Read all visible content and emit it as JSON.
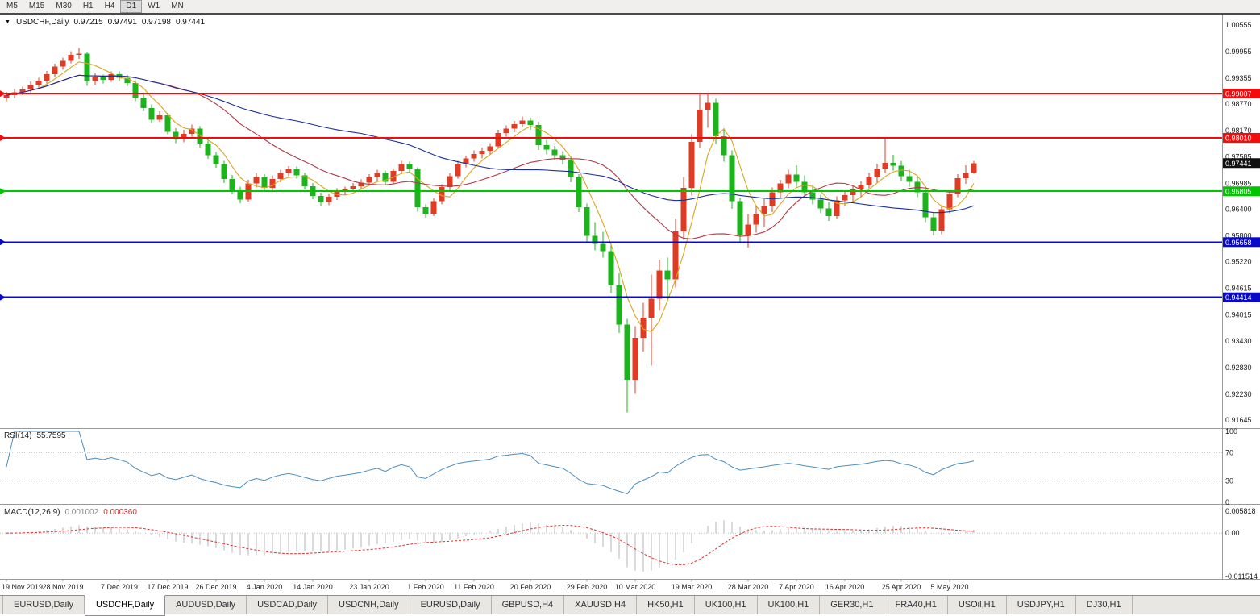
{
  "toolbar": {
    "timeframes": [
      "M5",
      "M15",
      "M30",
      "H1",
      "H4",
      "D1",
      "W1",
      "MN"
    ],
    "active": "D1"
  },
  "chart": {
    "title": "USDCHF,Daily",
    "ohlc": {
      "open": "0.97215",
      "high": "0.97491",
      "low": "0.97198",
      "close": "0.97441"
    }
  },
  "rsi": {
    "label": "RSI(14)",
    "value": "55.7595",
    "color": "#4a8ec2",
    "levels": [
      "100",
      "70",
      "30",
      "0"
    ]
  },
  "macd": {
    "label": "MACD(12,26,9)",
    "value_macd": "0.001002",
    "value_signal": "0.000360",
    "axis_labels": [
      "0.005818",
      "0.00",
      "-0.011514"
    ],
    "histogram_color": "#b4b4b4",
    "signal_color": "#e03030"
  },
  "tabbar": {
    "active_index": 1,
    "tabs": [
      "EURUSD,Daily",
      "USDCHF,Daily",
      "AUDUSD,Daily",
      "USDCAD,Daily",
      "USDCNH,Daily",
      "EURUSD,Daily",
      "GBPUSD,H4",
      "XAUUSD,H4",
      "HK50,H1",
      "UK100,H1",
      "UK100,H1",
      "GER30,H1",
      "FRA40,H1",
      "USOil,H1",
      "USDJPY,H1",
      "DJ30,H1"
    ]
  },
  "chart_data": {
    "type": "candlestick",
    "symbol": "USDCHF",
    "timeframe": "Daily",
    "current_price": 0.97441,
    "candle_colors": {
      "bull": "#e23b24",
      "bear": "#1db31d"
    },
    "price_axis": {
      "min": 0.91645,
      "max": 1.00555,
      "ticks": [
        "1.00555",
        "0.99955",
        "0.99355",
        "0.98770",
        "0.98170",
        "0.97585",
        "0.96985",
        "0.96400",
        "0.95800",
        "0.95220",
        "0.94615",
        "0.94015",
        "0.93430",
        "0.92830",
        "0.92230",
        "0.91645"
      ]
    },
    "horizontal_lines": [
      {
        "price": 0.99007,
        "label": "0.99007",
        "color": "#f40b0b",
        "width": 2
      },
      {
        "price": 0.9801,
        "label": "0.98010",
        "color": "#f40b0b",
        "width": 2
      },
      {
        "price": 0.96805,
        "label": "0.96805",
        "color": "#00c500",
        "width": 2
      },
      {
        "price": 0.95658,
        "label": "0.95658",
        "color": "#0909c9",
        "width": 2
      },
      {
        "price": 0.94414,
        "label": "0.94414",
        "color": "#0909c9",
        "width": 2
      }
    ],
    "moving_averages": [
      {
        "period": 5,
        "color": "#d9a520"
      },
      {
        "period": 20,
        "color": "#b03a48"
      },
      {
        "period": 45,
        "color": "#1a2f9c"
      }
    ],
    "x_ticks": [
      {
        "label": "19 Nov 2019",
        "bar": 0
      },
      {
        "label": "28 Nov 2019",
        "bar": 7
      },
      {
        "label": "7 Dec 2019",
        "bar": 14
      },
      {
        "label": "17 Dec 2019",
        "bar": 20
      },
      {
        "label": "26 Dec 2019",
        "bar": 26
      },
      {
        "label": "4 Jan 2020",
        "bar": 32
      },
      {
        "label": "14 Jan 2020",
        "bar": 38
      },
      {
        "label": "23 Jan 2020",
        "bar": 45
      },
      {
        "label": "1 Feb 2020",
        "bar": 52
      },
      {
        "label": "11 Feb 2020",
        "bar": 58
      },
      {
        "label": "20 Feb 2020",
        "bar": 65
      },
      {
        "label": "29 Feb 2020",
        "bar": 72
      },
      {
        "label": "10 Mar 2020",
        "bar": 78
      },
      {
        "label": "19 Mar 2020",
        "bar": 85
      },
      {
        "label": "28 Mar 2020",
        "bar": 92
      },
      {
        "label": "7 Apr 2020",
        "bar": 98
      },
      {
        "label": "16 Apr 2020",
        "bar": 104
      },
      {
        "label": "25 Apr 2020",
        "bar": 111
      },
      {
        "label": "5 May 2020",
        "bar": 117
      }
    ],
    "candles": [
      [
        0.989,
        0.9905,
        0.9884,
        0.9897
      ],
      [
        0.9897,
        0.9911,
        0.989,
        0.9904
      ],
      [
        0.9904,
        0.9916,
        0.9897,
        0.991
      ],
      [
        0.991,
        0.9928,
        0.9904,
        0.9921
      ],
      [
        0.9921,
        0.9936,
        0.9914,
        0.993
      ],
      [
        0.993,
        0.9952,
        0.9924,
        0.9945
      ],
      [
        0.9945,
        0.9968,
        0.9939,
        0.9962
      ],
      [
        0.9962,
        0.9982,
        0.9955,
        0.9975
      ],
      [
        0.9975,
        0.9996,
        0.9969,
        0.9988
      ],
      [
        0.9988,
        1.0004,
        0.9979,
        0.9991
      ],
      [
        0.9991,
        0.9995,
        0.9918,
        0.9929
      ],
      [
        0.9929,
        0.9946,
        0.9921,
        0.9938
      ],
      [
        0.9938,
        0.9944,
        0.9924,
        0.9932
      ],
      [
        0.9932,
        0.9951,
        0.9927,
        0.9945
      ],
      [
        0.9945,
        0.9951,
        0.9929,
        0.9936
      ],
      [
        0.9936,
        0.9943,
        0.9917,
        0.9925
      ],
      [
        0.9925,
        0.9931,
        0.9884,
        0.9892
      ],
      [
        0.9892,
        0.9901,
        0.9861,
        0.9868
      ],
      [
        0.9868,
        0.9876,
        0.9835,
        0.9842
      ],
      [
        0.9842,
        0.9861,
        0.9837,
        0.9852
      ],
      [
        0.9852,
        0.9857,
        0.9809,
        0.9815
      ],
      [
        0.9815,
        0.9823,
        0.9789,
        0.9798
      ],
      [
        0.9798,
        0.9819,
        0.9791,
        0.981
      ],
      [
        0.981,
        0.9831,
        0.9804,
        0.9822
      ],
      [
        0.9822,
        0.9827,
        0.9779,
        0.9788
      ],
      [
        0.9788,
        0.9795,
        0.9754,
        0.9762
      ],
      [
        0.9762,
        0.9769,
        0.9734,
        0.9742
      ],
      [
        0.9742,
        0.9749,
        0.9699,
        0.9708
      ],
      [
        0.9708,
        0.9717,
        0.9674,
        0.9682
      ],
      [
        0.9682,
        0.9691,
        0.9654,
        0.9662
      ],
      [
        0.9662,
        0.9706,
        0.9657,
        0.9698
      ],
      [
        0.9698,
        0.9721,
        0.9689,
        0.9712
      ],
      [
        0.9712,
        0.9719,
        0.9681,
        0.9688
      ],
      [
        0.9688,
        0.9716,
        0.9683,
        0.9708
      ],
      [
        0.9708,
        0.9729,
        0.9701,
        0.9722
      ],
      [
        0.9722,
        0.9737,
        0.9715,
        0.973
      ],
      [
        0.973,
        0.9736,
        0.9709,
        0.9716
      ],
      [
        0.9716,
        0.9723,
        0.9685,
        0.9692
      ],
      [
        0.9692,
        0.9699,
        0.9663,
        0.967
      ],
      [
        0.967,
        0.9677,
        0.9647,
        0.9656
      ],
      [
        0.9656,
        0.9675,
        0.9649,
        0.9668
      ],
      [
        0.9668,
        0.9687,
        0.9661,
        0.968
      ],
      [
        0.968,
        0.9691,
        0.9671,
        0.9686
      ],
      [
        0.9686,
        0.9699,
        0.9679,
        0.9692
      ],
      [
        0.9692,
        0.9707,
        0.9685,
        0.97
      ],
      [
        0.97,
        0.9719,
        0.9693,
        0.9712
      ],
      [
        0.9712,
        0.9729,
        0.9705,
        0.9722
      ],
      [
        0.9722,
        0.9727,
        0.9695,
        0.9702
      ],
      [
        0.9702,
        0.9731,
        0.9697,
        0.9726
      ],
      [
        0.9726,
        0.9749,
        0.9719,
        0.9742
      ],
      [
        0.9742,
        0.9747,
        0.9721,
        0.973
      ],
      [
        0.973,
        0.9735,
        0.9635,
        0.9645
      ],
      [
        0.9645,
        0.9651,
        0.9621,
        0.963
      ],
      [
        0.963,
        0.9665,
        0.9625,
        0.9658
      ],
      [
        0.9658,
        0.9696,
        0.9651,
        0.969
      ],
      [
        0.969,
        0.9721,
        0.9683,
        0.9715
      ],
      [
        0.9715,
        0.9749,
        0.9709,
        0.9742
      ],
      [
        0.9742,
        0.9761,
        0.9735,
        0.9755
      ],
      [
        0.9755,
        0.9773,
        0.9747,
        0.9765
      ],
      [
        0.9765,
        0.9779,
        0.9755,
        0.9772
      ],
      [
        0.9772,
        0.9789,
        0.9764,
        0.9782
      ],
      [
        0.9782,
        0.9819,
        0.9777,
        0.9812
      ],
      [
        0.9812,
        0.9829,
        0.9804,
        0.9822
      ],
      [
        0.9822,
        0.9839,
        0.9814,
        0.9832
      ],
      [
        0.9832,
        0.9849,
        0.9825,
        0.984
      ],
      [
        0.984,
        0.9846,
        0.9819,
        0.983
      ],
      [
        0.983,
        0.9837,
        0.9774,
        0.9785
      ],
      [
        0.9785,
        0.9796,
        0.9764,
        0.9775
      ],
      [
        0.9775,
        0.9783,
        0.9751,
        0.9762
      ],
      [
        0.9762,
        0.9771,
        0.9741,
        0.9752
      ],
      [
        0.9752,
        0.9759,
        0.9701,
        0.9712
      ],
      [
        0.9712,
        0.9719,
        0.9634,
        0.9645
      ],
      [
        0.9645,
        0.9653,
        0.9566,
        0.958
      ],
      [
        0.958,
        0.9611,
        0.9547,
        0.9562
      ],
      [
        0.9562,
        0.9589,
        0.9531,
        0.9545
      ],
      [
        0.9545,
        0.9563,
        0.9451,
        0.9468
      ],
      [
        0.9468,
        0.9496,
        0.9361,
        0.938
      ],
      [
        0.938,
        0.9393,
        0.9182,
        0.9255
      ],
      [
        0.9255,
        0.9376,
        0.9224,
        0.935
      ],
      [
        0.935,
        0.9429,
        0.9319,
        0.9395
      ],
      [
        0.9395,
        0.9493,
        0.9287,
        0.9438
      ],
      [
        0.9438,
        0.9526,
        0.9411,
        0.9502
      ],
      [
        0.9502,
        0.9531,
        0.9437,
        0.9482
      ],
      [
        0.9482,
        0.9619,
        0.9464,
        0.959
      ],
      [
        0.959,
        0.9713,
        0.9571,
        0.9688
      ],
      [
        0.9688,
        0.9809,
        0.9671,
        0.9792
      ],
      [
        0.9792,
        0.9899,
        0.9777,
        0.9865
      ],
      [
        0.9865,
        0.9901,
        0.9824,
        0.988
      ],
      [
        0.988,
        0.9889,
        0.9787,
        0.9805
      ],
      [
        0.9805,
        0.9823,
        0.9747,
        0.9762
      ],
      [
        0.9762,
        0.9773,
        0.9641,
        0.9658
      ],
      [
        0.9658,
        0.9666,
        0.9567,
        0.9582
      ],
      [
        0.9582,
        0.9629,
        0.9554,
        0.9605
      ],
      [
        0.9605,
        0.9649,
        0.9587,
        0.963
      ],
      [
        0.963,
        0.9663,
        0.9601,
        0.9648
      ],
      [
        0.9648,
        0.9689,
        0.9634,
        0.9678
      ],
      [
        0.9678,
        0.9706,
        0.9664,
        0.9698
      ],
      [
        0.9698,
        0.9729,
        0.9687,
        0.9718
      ],
      [
        0.9718,
        0.9739,
        0.9691,
        0.9702
      ],
      [
        0.9702,
        0.9716,
        0.9667,
        0.9678
      ],
      [
        0.9678,
        0.9693,
        0.9651,
        0.9662
      ],
      [
        0.9662,
        0.9673,
        0.9631,
        0.9642
      ],
      [
        0.9642,
        0.9656,
        0.9614,
        0.9625
      ],
      [
        0.9625,
        0.9669,
        0.9617,
        0.966
      ],
      [
        0.966,
        0.9683,
        0.9647,
        0.9672
      ],
      [
        0.9672,
        0.9693,
        0.9654,
        0.9685
      ],
      [
        0.9685,
        0.9703,
        0.9667,
        0.9695
      ],
      [
        0.9695,
        0.9723,
        0.9687,
        0.9712
      ],
      [
        0.9712,
        0.9743,
        0.9699,
        0.9732
      ],
      [
        0.9732,
        0.9798,
        0.9721,
        0.9745
      ],
      [
        0.9745,
        0.9763,
        0.9727,
        0.9738
      ],
      [
        0.9738,
        0.9749,
        0.9704,
        0.9715
      ],
      [
        0.9715,
        0.9729,
        0.9691,
        0.9702
      ],
      [
        0.9702,
        0.9713,
        0.9667,
        0.9678
      ],
      [
        0.9678,
        0.9686,
        0.9611,
        0.9622
      ],
      [
        0.9622,
        0.9633,
        0.9581,
        0.9592
      ],
      [
        0.9592,
        0.9649,
        0.9584,
        0.964
      ],
      [
        0.964,
        0.9683,
        0.9631,
        0.9675
      ],
      [
        0.9675,
        0.9719,
        0.9667,
        0.971
      ],
      [
        0.971,
        0.9739,
        0.9697,
        0.9722
      ],
      [
        0.97215,
        0.97491,
        0.97198,
        0.97441
      ]
    ]
  }
}
